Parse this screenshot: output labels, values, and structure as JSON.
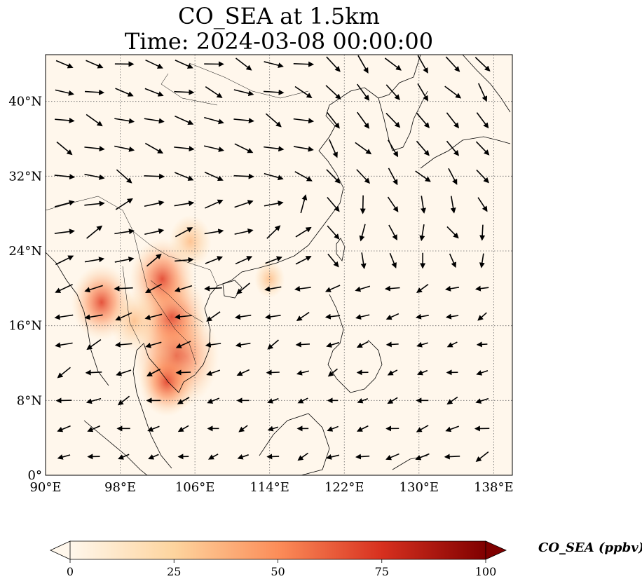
{
  "title": {
    "line1": "CO_SEA at 1.5km",
    "line2": "Time: 2024-03-08 00:00:00"
  },
  "map": {
    "lon_range": [
      90,
      140
    ],
    "lat_range": [
      0,
      45
    ],
    "projection": "PlateCarree",
    "gridlines": "dotted",
    "lon_ticks": [
      {
        "value": 90,
        "label": "90°E"
      },
      {
        "value": 98,
        "label": "98°E"
      },
      {
        "value": 106,
        "label": "106°E"
      },
      {
        "value": 114,
        "label": "114°E"
      },
      {
        "value": 122,
        "label": "122°E"
      },
      {
        "value": 130,
        "label": "130°E"
      },
      {
        "value": 138,
        "label": "138°E"
      }
    ],
    "lat_ticks": [
      {
        "value": 0,
        "label": "0°"
      },
      {
        "value": 8,
        "label": "8°N"
      },
      {
        "value": 16,
        "label": "16°N"
      },
      {
        "value": 24,
        "label": "24°N"
      },
      {
        "value": 32,
        "label": "32°N"
      },
      {
        "value": 40,
        "label": "40°N"
      }
    ]
  },
  "colorbar": {
    "label": "CO_SEA (ppbv)",
    "range": [
      0,
      100
    ],
    "extend": "both",
    "colormap": "OrRd",
    "ticks": [
      {
        "value": 0,
        "label": "0"
      },
      {
        "value": 25,
        "label": "25"
      },
      {
        "value": 50,
        "label": "50"
      },
      {
        "value": 75,
        "label": "75"
      },
      {
        "value": 100,
        "label": "100"
      }
    ],
    "colors": [
      "#fff7ec",
      "#fdd49e",
      "#fc8d59",
      "#d7301f",
      "#7f0000"
    ]
  },
  "co_hotspots": [
    {
      "lon": 104.0,
      "lat": 12.8,
      "value": 65
    },
    {
      "lon": 103.5,
      "lat": 17.0,
      "value": 50
    },
    {
      "lon": 102.5,
      "lat": 21.0,
      "value": 45
    },
    {
      "lon": 96.0,
      "lat": 18.5,
      "value": 40
    },
    {
      "lon": 103.0,
      "lat": 10.0,
      "value": 35
    },
    {
      "lon": 99.5,
      "lat": 16.5,
      "value": 28
    },
    {
      "lon": 105.5,
      "lat": 25.0,
      "value": 22
    },
    {
      "lon": 114.0,
      "lat": 21.0,
      "value": 10
    }
  ]
}
